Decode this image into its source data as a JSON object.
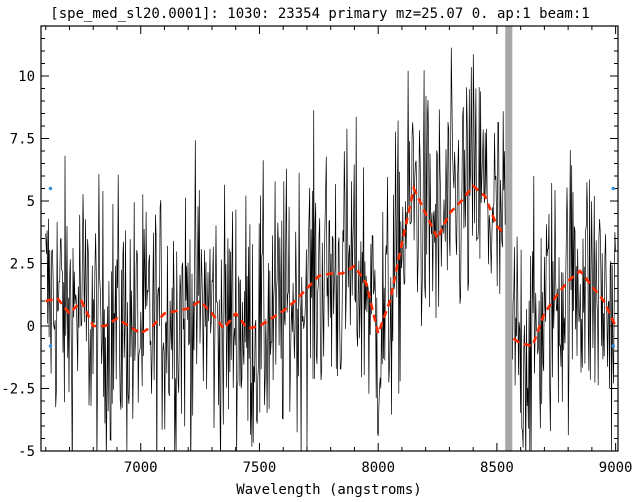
{
  "chart_data": {
    "type": "line",
    "title": "[spe_med_sl20.0001]: 1030: 23354 primary mz=25.07 0. ap:1 beam:1",
    "xlabel": "Wavelength (angstroms)",
    "ylabel": "",
    "xlim": [
      6580,
      9010
    ],
    "ylim": [
      -5,
      12
    ],
    "x_ticks": [
      7000,
      7500,
      8000,
      8500,
      9000
    ],
    "x_tick_labels": [
      "7000",
      "7500",
      "8000",
      "8500",
      "9000"
    ],
    "y_ticks": [
      -5,
      -2.5,
      0,
      2.5,
      5,
      7.5,
      10
    ],
    "y_tick_labels": [
      "-5",
      "-2.5",
      "0",
      "2.5",
      "5",
      "7.5",
      "10"
    ],
    "grid": false,
    "masked_band": [
      8535,
      8565
    ],
    "colors": {
      "spectrum": "#000000",
      "smoothed": "#ff2a00",
      "mask": "#a8a8a8",
      "markers": "#3a8fd8"
    },
    "series": [
      {
        "kind": "noisy-spectrum",
        "x": [
          6600,
          6650,
          6700,
          6750,
          6800,
          6850,
          6900,
          6950,
          7000,
          7050,
          7100,
          7150,
          7200,
          7250,
          7300,
          7350,
          7400,
          7450,
          7500,
          7550,
          7600,
          7650,
          7700,
          7750,
          7800,
          7850,
          7900,
          7950,
          8000,
          8050,
          8100,
          8150,
          8200,
          8250,
          8300,
          8350,
          8400,
          8450,
          8500,
          8530,
          8570,
          8600,
          8650,
          8700,
          8750,
          8800,
          8850,
          8900,
          8950,
          9000
        ],
        "y": [
          1.0,
          1.1,
          0.5,
          1.0,
          0.0,
          0.0,
          0.3,
          0.0,
          -0.3,
          0.0,
          0.5,
          0.6,
          0.7,
          1.0,
          0.5,
          -0.1,
          0.5,
          -0.1,
          0.0,
          0.3,
          0.6,
          1.0,
          1.5,
          2.0,
          2.1,
          2.1,
          2.4,
          1.7,
          -0.3,
          1.0,
          3.3,
          5.5,
          4.5,
          3.5,
          4.5,
          5.0,
          5.6,
          5.2,
          4.0,
          3.7,
          -0.5,
          -0.7,
          -0.8,
          0.5,
          1.2,
          1.8,
          2.2,
          1.6,
          1.0,
          0.0
        ],
        "noise_amplitude": 3.0
      },
      {
        "kind": "smoothed",
        "x": [
          6600,
          6650,
          6700,
          6750,
          6800,
          6850,
          6900,
          6950,
          7000,
          7050,
          7100,
          7150,
          7200,
          7250,
          7300,
          7350,
          7400,
          7450,
          7500,
          7550,
          7600,
          7650,
          7700,
          7750,
          7800,
          7850,
          7900,
          7950,
          8000,
          8050,
          8100,
          8150,
          8200,
          8250,
          8300,
          8350,
          8400,
          8450,
          8500,
          8530,
          8570,
          8600,
          8650,
          8700,
          8750,
          8800,
          8850,
          8900,
          8950,
          9000
        ],
        "y": [
          1.0,
          1.1,
          0.5,
          1.0,
          0.0,
          0.0,
          0.3,
          0.0,
          -0.3,
          0.0,
          0.5,
          0.6,
          0.7,
          1.0,
          0.5,
          -0.1,
          0.5,
          -0.1,
          0.0,
          0.3,
          0.6,
          1.0,
          1.5,
          2.0,
          2.1,
          2.1,
          2.4,
          1.7,
          -0.3,
          1.0,
          3.3,
          5.5,
          4.5,
          3.5,
          4.5,
          5.0,
          5.6,
          5.2,
          4.0,
          3.7,
          -0.5,
          -0.7,
          -0.8,
          0.5,
          1.2,
          1.8,
          2.2,
          1.6,
          1.0,
          0.0
        ]
      }
    ],
    "markers": [
      {
        "x": 6620,
        "y": 5.5
      },
      {
        "x": 6620,
        "y": -0.8
      },
      {
        "x": 8990,
        "y": 5.5
      },
      {
        "x": 8990,
        "y": -0.8
      }
    ]
  }
}
